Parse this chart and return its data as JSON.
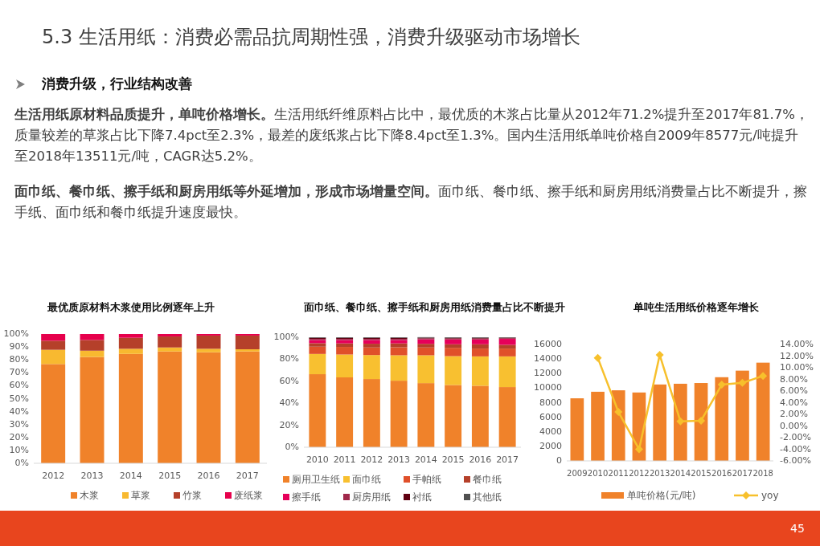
{
  "chart_data": [
    {
      "type": "other",
      "title": "5.3 生活用纸：消费必需品抗周期性强，消费升级驱动市场增长",
      "annotations": [
        "消费升级，行业结构改善",
        "**生活用纸原材料品质提升，单吨价格增长。**生活用纸纤维原料占比中，最优质的木浆占比量从2012年71.2%提升至2017年81.7%，质量较差的草浆占比下降7.4pct至2.3%，最差的废纸浆占比下降8.4pct至1.3%。国内生活用纸单吨价格自2009年8577元/吨提升至2018年13511元/吨，CAGR达5.2%。",
        "**面巾纸、餐巾纸、擦手纸和厨房用纸等外延增加，形成市场增量空间。**面巾纸、餐巾纸、擦手纸和厨房用纸消费量占比不断提升，擦手纸、面巾纸和餐巾纸提升速度最快。",
        "45"
      ]
    },
    {
      "type": "bar",
      "title": "最优质原材料木浆使用比例逐年上升",
      "stacked": true,
      "legend": "bottom",
      "categories": [
        "2012",
        "2013",
        "2014",
        "2015",
        "2016",
        "2017"
      ],
      "ylim": [
        0,
        100
      ],
      "yticks": [
        {
          "value": 0,
          "label": "0%"
        },
        {
          "value": 10,
          "label": "10%"
        },
        {
          "value": 20,
          "label": "20%"
        },
        {
          "value": 30,
          "label": "30%"
        },
        {
          "value": 40,
          "label": "40%"
        },
        {
          "value": 50,
          "label": "50%"
        },
        {
          "value": 60,
          "label": "60%"
        },
        {
          "value": 70,
          "label": "70%"
        },
        {
          "value": 80,
          "label": "80%"
        },
        {
          "value": 90,
          "label": "90%"
        },
        {
          "value": 100,
          "label": "100%"
        }
      ],
      "series": [
        {
          "name": "木浆",
          "color": "#f0822a",
          "values": [
            76.8,
            82.2,
            84.6,
            86.5,
            85.9,
            86.5
          ]
        },
        {
          "name": "草浆",
          "color": "#f8b930",
          "values": [
            11.0,
            4.9,
            4.0,
            3.1,
            2.7,
            1.7
          ]
        },
        {
          "name": "竹浆",
          "color": "#b5402a",
          "values": [
            7.0,
            8.3,
            8.5,
            8.5,
            10.2,
            10.6
          ]
        },
        {
          "name": "废纸浆",
          "color": "#e6004c",
          "values": [
            5.2,
            4.6,
            2.9,
            1.9,
            1.2,
            1.2
          ]
        }
      ]
    },
    {
      "type": "bar",
      "title": "面巾纸、餐巾纸、擦手纸和厨房用纸消费量占比不断提升",
      "stacked": true,
      "legend": "bottom",
      "categories": [
        "2010",
        "2011",
        "2012",
        "2013",
        "2014",
        "2015",
        "2016",
        "2017"
      ],
      "ylim": [
        0,
        100
      ],
      "yticks": [
        {
          "value": 0,
          "label": "0%"
        },
        {
          "value": 20,
          "label": "20%"
        },
        {
          "value": 40,
          "label": "40%"
        },
        {
          "value": 60,
          "label": "60%"
        },
        {
          "value": 80,
          "label": "80%"
        },
        {
          "value": 100,
          "label": "100%"
        }
      ],
      "series": [
        {
          "name": "厕用卫生纸",
          "color": "#f0822a",
          "values": [
            66.4,
            63.5,
            62.0,
            60.5,
            58.3,
            56.6,
            55.9,
            54.7
          ]
        },
        {
          "name": "面巾纸",
          "color": "#f8c030",
          "values": [
            18.4,
            20.8,
            21.8,
            23.1,
            25.3,
            26.2,
            26.7,
            27.9
          ]
        },
        {
          "name": "手帕纸",
          "color": "#e0502a",
          "values": [
            6.6,
            6.9,
            6.9,
            7.3,
            7.1,
            7.6,
            7.1,
            7.1
          ]
        },
        {
          "name": "餐巾纸",
          "color": "#b5402a",
          "values": [
            3.2,
            3.2,
            3.4,
            3.5,
            3.3,
            3.2,
            3.9,
            3.4
          ]
        },
        {
          "name": "擦手纸",
          "color": "#e6005a",
          "values": [
            2.9,
            3.1,
            3.4,
            3.1,
            4.1,
            4.4,
            4.4,
            5.4
          ]
        },
        {
          "name": "厨房用纸",
          "color": "#a0284a",
          "values": [
            1.0,
            1.0,
            1.0,
            1.0,
            0.8,
            0.8,
            0.8,
            0.6
          ]
        },
        {
          "name": "衬纸",
          "color": "#600010",
          "values": [
            1.0,
            1.0,
            1.0,
            1.0,
            0.7,
            0.7,
            0.7,
            0.5
          ]
        },
        {
          "name": "其他纸",
          "color": "#505050",
          "values": [
            0.5,
            0.5,
            0.5,
            0.5,
            0.5,
            0.5,
            0.5,
            0.4
          ]
        }
      ]
    },
    {
      "type": "bar",
      "title": "单吨生活用纸价格逐年增长",
      "legend": "bottom",
      "marker": "diamond",
      "categories": [
        "2009",
        "2010",
        "2011",
        "2012",
        "2013",
        "2014",
        "2015",
        "2016",
        "2017",
        "2018"
      ],
      "ylim": [
        0,
        16000
      ],
      "yticks": [
        0,
        2000,
        4000,
        6000,
        8000,
        10000,
        12000,
        14000,
        16000
      ],
      "y2lim": [
        -6,
        14
      ],
      "y2ticks": [
        {
          "value": -6,
          "label": "-6.00%"
        },
        {
          "value": -4,
          "label": "-4.00%"
        },
        {
          "value": -2,
          "label": "-2.00%"
        },
        {
          "value": 0,
          "label": "0.00%"
        },
        {
          "value": 2,
          "label": "2.00%"
        },
        {
          "value": 4,
          "label": "4.00%"
        },
        {
          "value": 6,
          "label": "6.00%"
        },
        {
          "value": 8,
          "label": "8.00%"
        },
        {
          "value": 10,
          "label": "10.00%"
        },
        {
          "value": 12,
          "label": "12.00%"
        },
        {
          "value": 14,
          "label": "14.00%"
        }
      ],
      "series": [
        {
          "name": "单吨价格(元/吨)",
          "color": "#f0822a",
          "values": [
            8600,
            9500,
            9700,
            9400,
            10500,
            10600,
            10700,
            11500,
            12400,
            13500
          ]
        },
        {
          "name": "yoy",
          "type": "line",
          "axis": "y2",
          "color": "#f7c02c",
          "values": [
            null,
            11.7,
            2.4,
            -4.0,
            12.2,
            0.8,
            0.9,
            7.1,
            7.4,
            8.6
          ]
        }
      ]
    }
  ]
}
